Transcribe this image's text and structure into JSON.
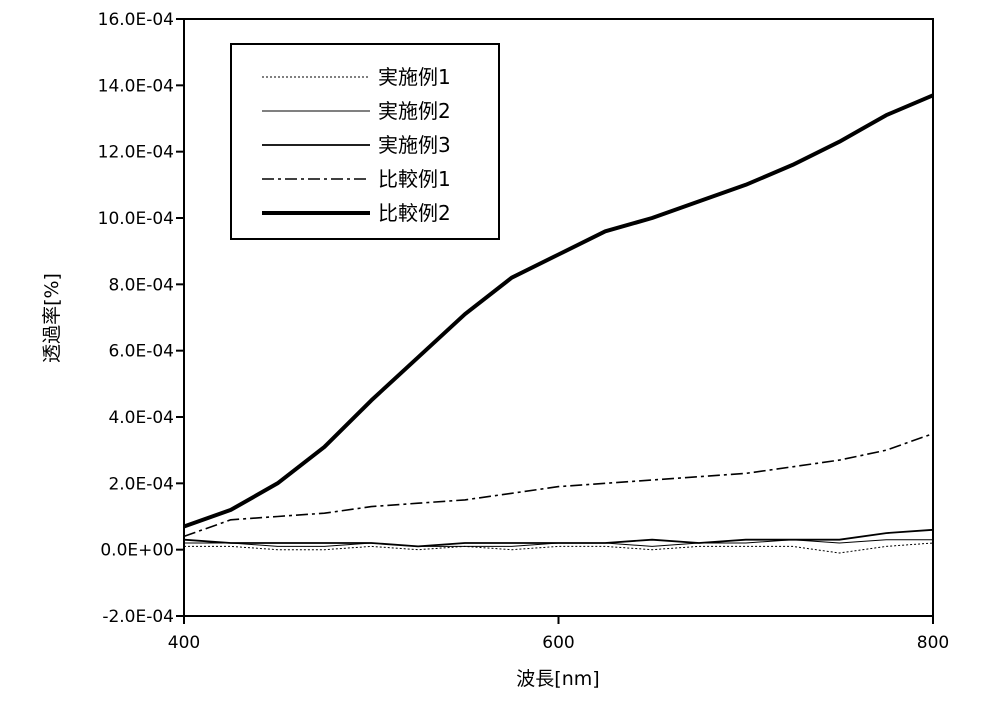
{
  "chart_data": {
    "type": "line",
    "title": "",
    "xlabel": "波長[nm]",
    "ylabel": "透過率[%]",
    "xlim": [
      400,
      800
    ],
    "ylim": [
      -0.0002,
      0.0016
    ],
    "x_ticks": [
      400,
      600,
      800
    ],
    "x_tick_labels": [
      "400",
      "600",
      "800"
    ],
    "y_ticks": [
      -0.0002,
      0.0,
      0.0002,
      0.0004,
      0.0006,
      0.0008,
      0.001,
      0.0012,
      0.0014,
      0.0016
    ],
    "y_tick_labels": [
      "-2.0E-04",
      "0.0E+00",
      "2.0E-04",
      "4.0E-04",
      "6.0E-04",
      "8.0E-04",
      "10.0E-04",
      "12.0E-04",
      "14.0E-04",
      "16.0E-04"
    ],
    "grid": false,
    "legend_position": "top-left",
    "x": [
      400,
      425,
      450,
      475,
      500,
      525,
      550,
      575,
      600,
      625,
      650,
      675,
      700,
      725,
      750,
      775,
      800
    ],
    "series": [
      {
        "name": "実施例1",
        "style": "dotted",
        "color": "#000000",
        "values": [
          1e-05,
          1e-05,
          0.0,
          0.0,
          1e-05,
          0.0,
          1e-05,
          0.0,
          1e-05,
          1e-05,
          0.0,
          1e-05,
          1e-05,
          1e-05,
          -1e-05,
          1e-05,
          2e-05
        ]
      },
      {
        "name": "実施例2",
        "style": "thin",
        "color": "#000000",
        "values": [
          2e-05,
          2e-05,
          1e-05,
          1e-05,
          2e-05,
          1e-05,
          1e-05,
          1e-05,
          2e-05,
          2e-05,
          1e-05,
          2e-05,
          2e-05,
          3e-05,
          2e-05,
          3e-05,
          3e-05
        ]
      },
      {
        "name": "実施例3",
        "style": "solid",
        "color": "#000000",
        "values": [
          3e-05,
          2e-05,
          2e-05,
          2e-05,
          2e-05,
          1e-05,
          2e-05,
          2e-05,
          2e-05,
          2e-05,
          3e-05,
          2e-05,
          3e-05,
          3e-05,
          3e-05,
          5e-05,
          6e-05
        ]
      },
      {
        "name": "比較例1",
        "style": "dashdot",
        "color": "#000000",
        "values": [
          4e-05,
          9e-05,
          0.0001,
          0.00011,
          0.00013,
          0.00014,
          0.00015,
          0.00017,
          0.00019,
          0.0002,
          0.00021,
          0.00022,
          0.00023,
          0.00025,
          0.00027,
          0.0003,
          0.00035
        ]
      },
      {
        "name": "比較例2",
        "style": "thick",
        "color": "#000000",
        "values": [
          7e-05,
          0.00012,
          0.0002,
          0.00031,
          0.00045,
          0.00058,
          0.00071,
          0.00082,
          0.00089,
          0.00096,
          0.001,
          0.00105,
          0.0011,
          0.00116,
          0.00123,
          0.00131,
          0.00137
        ]
      }
    ]
  }
}
